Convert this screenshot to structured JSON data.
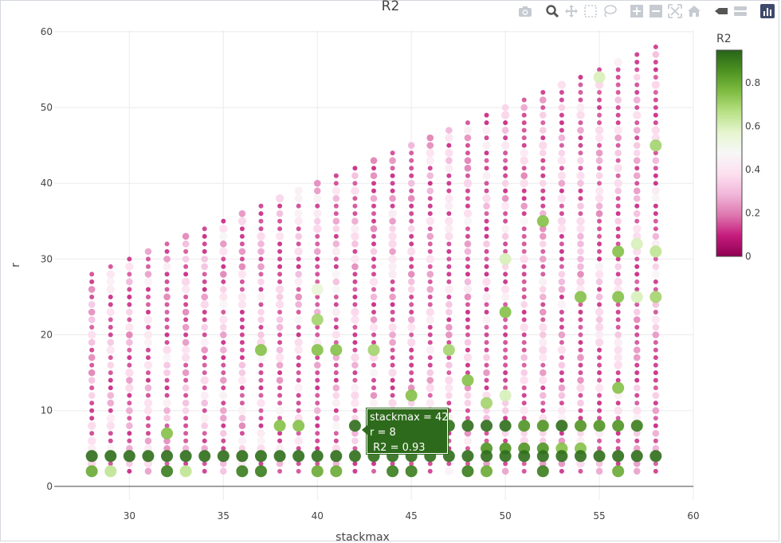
{
  "chart_data": {
    "type": "scatter",
    "title": "R2",
    "xlabel": "stackmax",
    "ylabel": "r",
    "xlim": [
      26,
      60
    ],
    "ylim": [
      -1.8,
      60.2
    ],
    "xticks": [
      30,
      35,
      40,
      45,
      50,
      55,
      60
    ],
    "yticks": [
      0,
      10,
      20,
      30,
      40,
      50,
      60
    ],
    "grid": true,
    "x_range_values": [
      28,
      58
    ],
    "y_rule": "r from 2 up to stackmax, step 1 (one point per integer r, per integer stackmax)",
    "colorbar": {
      "title": "R2",
      "range": [
        0,
        0.95
      ],
      "ticks": [
        0,
        0.2,
        0.4,
        0.6,
        0.8
      ],
      "tick_labels": [
        "0",
        "0.2",
        "0.4",
        "0.6",
        "0.8"
      ],
      "colors": [
        "#8e0152",
        "#c51b7d",
        "#de77ae",
        "#f1b6da",
        "#fde0ef",
        "#f7f7f7",
        "#e6f5d0",
        "#b8e186",
        "#7fbc41",
        "#4d9221",
        "#276419"
      ]
    },
    "highlighted_points": [
      {
        "x": 28,
        "y": 4,
        "r2": 0.93
      },
      {
        "x": 29,
        "y": 4,
        "r2": 0.93
      },
      {
        "x": 30,
        "y": 4,
        "r2": 0.93
      },
      {
        "x": 31,
        "y": 4,
        "r2": 0.93
      },
      {
        "x": 32,
        "y": 4,
        "r2": 0.93
      },
      {
        "x": 33,
        "y": 4,
        "r2": 0.93
      },
      {
        "x": 34,
        "y": 4,
        "r2": 0.93
      },
      {
        "x": 35,
        "y": 4,
        "r2": 0.93
      },
      {
        "x": 36,
        "y": 4,
        "r2": 0.93
      },
      {
        "x": 37,
        "y": 4,
        "r2": 0.93
      },
      {
        "x": 38,
        "y": 4,
        "r2": 0.93
      },
      {
        "x": 39,
        "y": 4,
        "r2": 0.93
      },
      {
        "x": 40,
        "y": 4,
        "r2": 0.93
      },
      {
        "x": 41,
        "y": 4,
        "r2": 0.93
      },
      {
        "x": 42,
        "y": 4,
        "r2": 0.93
      },
      {
        "x": 43,
        "y": 4,
        "r2": 0.93
      },
      {
        "x": 44,
        "y": 4,
        "r2": 0.93
      },
      {
        "x": 45,
        "y": 4,
        "r2": 0.93
      },
      {
        "x": 46,
        "y": 4,
        "r2": 0.93
      },
      {
        "x": 47,
        "y": 4,
        "r2": 0.93
      },
      {
        "x": 48,
        "y": 4,
        "r2": 0.93
      },
      {
        "x": 49,
        "y": 4,
        "r2": 0.93
      },
      {
        "x": 50,
        "y": 4,
        "r2": 0.93
      },
      {
        "x": 51,
        "y": 4,
        "r2": 0.93
      },
      {
        "x": 52,
        "y": 4,
        "r2": 0.93
      },
      {
        "x": 53,
        "y": 4,
        "r2": 0.93
      },
      {
        "x": 54,
        "y": 4,
        "r2": 0.93
      },
      {
        "x": 55,
        "y": 4,
        "r2": 0.93
      },
      {
        "x": 56,
        "y": 4,
        "r2": 0.93
      },
      {
        "x": 57,
        "y": 4,
        "r2": 0.93
      },
      {
        "x": 58,
        "y": 4,
        "r2": 0.93
      },
      {
        "x": 28,
        "y": 2,
        "r2": 0.8
      },
      {
        "x": 29,
        "y": 2,
        "r2": 0.65
      },
      {
        "x": 32,
        "y": 2,
        "r2": 0.9
      },
      {
        "x": 33,
        "y": 2,
        "r2": 0.65
      },
      {
        "x": 36,
        "y": 2,
        "r2": 0.9
      },
      {
        "x": 37,
        "y": 2,
        "r2": 0.9
      },
      {
        "x": 40,
        "y": 2,
        "r2": 0.8
      },
      {
        "x": 41,
        "y": 2,
        "r2": 0.8
      },
      {
        "x": 44,
        "y": 2,
        "r2": 0.9
      },
      {
        "x": 45,
        "y": 2,
        "r2": 0.9
      },
      {
        "x": 48,
        "y": 2,
        "r2": 0.9
      },
      {
        "x": 49,
        "y": 2,
        "r2": 0.8
      },
      {
        "x": 52,
        "y": 2,
        "r2": 0.9
      },
      {
        "x": 56,
        "y": 2,
        "r2": 0.8
      },
      {
        "x": 42,
        "y": 8,
        "r2": 0.93
      },
      {
        "x": 43,
        "y": 8,
        "r2": 0.93
      },
      {
        "x": 44,
        "y": 8,
        "r2": 0.93
      },
      {
        "x": 46,
        "y": 8,
        "r2": 0.93
      },
      {
        "x": 47,
        "y": 8,
        "r2": 0.93
      },
      {
        "x": 48,
        "y": 8,
        "r2": 0.93
      },
      {
        "x": 49,
        "y": 8,
        "r2": 0.93
      },
      {
        "x": 50,
        "y": 8,
        "r2": 0.93
      },
      {
        "x": 51,
        "y": 8,
        "r2": 0.85
      },
      {
        "x": 52,
        "y": 8,
        "r2": 0.85
      },
      {
        "x": 53,
        "y": 8,
        "r2": 0.93
      },
      {
        "x": 54,
        "y": 8,
        "r2": 0.85
      },
      {
        "x": 55,
        "y": 8,
        "r2": 0.85
      },
      {
        "x": 56,
        "y": 8,
        "r2": 0.85
      },
      {
        "x": 57,
        "y": 8,
        "r2": 0.9
      },
      {
        "x": 38,
        "y": 8,
        "r2": 0.75
      },
      {
        "x": 39,
        "y": 8,
        "r2": 0.75
      },
      {
        "x": 32,
        "y": 7,
        "r2": 0.75
      },
      {
        "x": 49,
        "y": 5,
        "r2": 0.85
      },
      {
        "x": 50,
        "y": 5,
        "r2": 0.85
      },
      {
        "x": 51,
        "y": 5,
        "r2": 0.85
      },
      {
        "x": 52,
        "y": 5,
        "r2": 0.85
      },
      {
        "x": 53,
        "y": 5,
        "r2": 0.75
      },
      {
        "x": 54,
        "y": 5,
        "r2": 0.75
      },
      {
        "x": 47,
        "y": 18,
        "r2": 0.7
      },
      {
        "x": 37,
        "y": 18,
        "r2": 0.75
      },
      {
        "x": 40,
        "y": 18,
        "r2": 0.75
      },
      {
        "x": 41,
        "y": 18,
        "r2": 0.75
      },
      {
        "x": 43,
        "y": 18,
        "r2": 0.7
      },
      {
        "x": 40,
        "y": 22,
        "r2": 0.7
      },
      {
        "x": 48,
        "y": 14,
        "r2": 0.75
      },
      {
        "x": 45,
        "y": 12,
        "r2": 0.75
      },
      {
        "x": 49,
        "y": 11,
        "r2": 0.7
      },
      {
        "x": 50,
        "y": 23,
        "r2": 0.75
      },
      {
        "x": 52,
        "y": 35,
        "r2": 0.75
      },
      {
        "x": 54,
        "y": 25,
        "r2": 0.75
      },
      {
        "x": 56,
        "y": 25,
        "r2": 0.75
      },
      {
        "x": 56,
        "y": 31,
        "r2": 0.75
      },
      {
        "x": 56,
        "y": 13,
        "r2": 0.75
      },
      {
        "x": 58,
        "y": 25,
        "r2": 0.7
      },
      {
        "x": 58,
        "y": 31,
        "r2": 0.65
      },
      {
        "x": 58,
        "y": 45,
        "r2": 0.7
      },
      {
        "x": 57,
        "y": 32,
        "r2": 0.6
      },
      {
        "x": 55,
        "y": 54,
        "r2": 0.6
      },
      {
        "x": 50,
        "y": 30,
        "r2": 0.6
      },
      {
        "x": 50,
        "y": 12,
        "r2": 0.6
      },
      {
        "x": 40,
        "y": 26,
        "r2": 0.55
      },
      {
        "x": 57,
        "y": 25,
        "r2": 0.6
      }
    ],
    "hover": {
      "line1": "stackmax = 42",
      "line2": "r = 8",
      "line3": " R2 = 0.93",
      "x": 42,
      "y": 8
    }
  },
  "toolbar": {
    "icons": [
      "camera-icon",
      "zoom-icon",
      "pan-icon",
      "box-select-icon",
      "lasso-icon",
      "zoom-in-icon",
      "zoom-out-icon",
      "autoscale-icon",
      "reset-axes-icon",
      "spike-lines-icon",
      "compare-icon",
      "plotly-logo-icon"
    ]
  }
}
